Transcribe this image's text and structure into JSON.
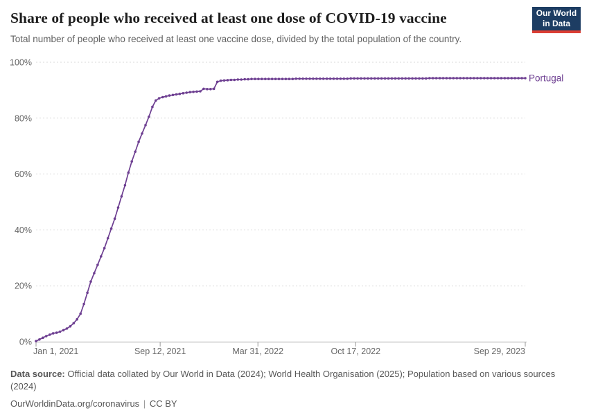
{
  "header": {
    "title": "Share of people who received at least one dose of COVID-19 vaccine",
    "subtitle": "Total number of people who received at least one vaccine dose, divided by the total population of the country.",
    "logo": {
      "line1": "Our World",
      "line2": "in Data",
      "bg_color": "#1d3d63",
      "accent_color": "#dc3e33"
    }
  },
  "chart_data": {
    "type": "line",
    "title": "Share of people who received at least one dose of COVID-19 vaccine",
    "xlabel": "",
    "ylabel": "",
    "ylim": [
      0,
      100
    ],
    "grid": "horizontal dashed",
    "legend_position": "end-of-line label",
    "x_unit": "days since Jan 1, 2021",
    "x_domain_days": [
      0,
      1001
    ],
    "y_ticks": [
      {
        "label": "0%",
        "value": 0
      },
      {
        "label": "20%",
        "value": 20
      },
      {
        "label": "40%",
        "value": 40
      },
      {
        "label": "60%",
        "value": 60
      },
      {
        "label": "80%",
        "value": 80
      },
      {
        "label": "100%",
        "value": 100
      }
    ],
    "x_ticks": [
      {
        "label": "Jan 1, 2021",
        "day": 0,
        "anchor": "start"
      },
      {
        "label": "Sep 12, 2021",
        "day": 254,
        "anchor": "middle"
      },
      {
        "label": "Mar 31, 2022",
        "day": 454,
        "anchor": "middle"
      },
      {
        "label": "Oct 17, 2022",
        "day": 654,
        "anchor": "middle"
      },
      {
        "label": "Sep 29, 2023",
        "day": 1001,
        "anchor": "end"
      }
    ],
    "series": [
      {
        "name": "Portugal",
        "color": "#6d3e91",
        "first_day": 0,
        "step_days": 7,
        "last_day": 1001,
        "values": [
          0.2,
          0.8,
          1.4,
          2.0,
          2.5,
          3.0,
          3.2,
          3.6,
          4.1,
          4.7,
          5.5,
          6.6,
          8.0,
          10.0,
          13.5,
          17.5,
          21.5,
          24.5,
          27.5,
          30.5,
          33.5,
          37.0,
          40.5,
          44.0,
          48.0,
          52.0,
          56.0,
          60.5,
          64.5,
          68.0,
          71.5,
          74.5,
          77.5,
          80.5,
          84.0,
          86.3,
          87.1,
          87.5,
          87.8,
          88.1,
          88.3,
          88.5,
          88.7,
          88.9,
          89.1,
          89.3,
          89.4,
          89.5,
          89.6,
          90.5,
          90.4,
          90.4,
          90.5,
          93.0,
          93.4,
          93.5,
          93.6,
          93.7,
          93.7,
          93.8,
          93.8,
          93.9,
          93.9,
          94.0,
          94.0,
          94.0,
          94.0,
          94.0,
          94.0,
          94.0,
          94.0,
          94.0,
          94.0,
          94.0,
          94.0,
          94.0,
          94.1,
          94.1,
          94.1,
          94.1,
          94.1,
          94.1,
          94.1,
          94.1,
          94.1,
          94.1,
          94.1,
          94.1,
          94.1,
          94.1,
          94.1,
          94.1,
          94.2,
          94.2,
          94.2,
          94.2,
          94.2,
          94.2,
          94.2,
          94.2,
          94.2,
          94.2,
          94.2,
          94.2,
          94.2,
          94.2,
          94.2,
          94.2,
          94.2,
          94.2,
          94.2,
          94.2,
          94.2,
          94.2,
          94.2,
          94.3,
          94.3,
          94.3,
          94.3,
          94.3,
          94.3,
          94.3,
          94.3,
          94.3,
          94.3,
          94.3,
          94.3,
          94.3,
          94.3,
          94.3,
          94.3,
          94.3,
          94.3,
          94.3,
          94.3,
          94.3,
          94.3,
          94.3,
          94.3,
          94.3,
          94.3,
          94.3,
          94.3,
          94.3
        ]
      }
    ],
    "style": {
      "grid_color": "#d9d9d9",
      "axis_color": "#a3a3a3",
      "tick_color": "#999999",
      "tick_label_color": "#666666"
    }
  },
  "footer": {
    "source_label": "Data source:",
    "source_text_line1": "Official data collated by Our World in Data (2024); World Health Organisation (2025); Population based on various sources",
    "source_text_line2": "(2024)",
    "link": "OurWorldinData.org/coronavirus",
    "separator": "|",
    "license": "CC BY"
  }
}
